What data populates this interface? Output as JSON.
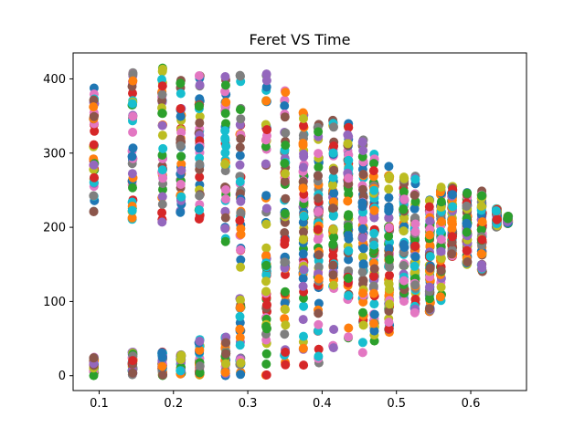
{
  "chart_data": {
    "type": "scatter",
    "title": "Feret VS Time",
    "xlabel": "",
    "ylabel": "",
    "xlim": [
      0.065,
      0.675
    ],
    "ylim": [
      -20,
      435
    ],
    "grid": false,
    "legend": "none",
    "x_ticks": [
      0.1,
      0.2,
      0.3,
      0.4,
      0.5,
      0.6
    ],
    "x_tick_labels": [
      "0.1",
      "0.2",
      "0.3",
      "0.4",
      "0.5",
      "0.6"
    ],
    "y_ticks": [
      0,
      100,
      200,
      300,
      400
    ],
    "y_tick_labels": [
      "0",
      "100",
      "200",
      "300",
      "400"
    ],
    "x": [
      0.093,
      0.145,
      0.185,
      0.21,
      0.235,
      0.27,
      0.29,
      0.325,
      0.35,
      0.375,
      0.395,
      0.415,
      0.435,
      0.455,
      0.47,
      0.49,
      0.51,
      0.525,
      0.545,
      0.56,
      0.575,
      0.595,
      0.615,
      0.635,
      0.65
    ],
    "bands": [
      {
        "low": 0,
        "high": 25,
        "top_low": 220,
        "top_high": 405
      },
      {
        "low": 0,
        "high": 32,
        "top_low": 210,
        "top_high": 410
      },
      {
        "low": 0,
        "high": 33,
        "top_low": 205,
        "top_high": 415
      },
      {
        "low": 0,
        "high": 30,
        "top_low": 220,
        "top_high": 410
      },
      {
        "low": 0,
        "high": 52,
        "top_low": 200,
        "top_high": 410
      },
      {
        "low": 0,
        "high": 55,
        "top_low": 180,
        "top_high": 410
      },
      {
        "low": 0,
        "high": 110,
        "top_low": 140,
        "top_high": 405
      },
      {
        "low": 0,
        "high": 170,
        "top_low": 110,
        "top_high": 408
      },
      {
        "low": 5,
        "high": 220,
        "top_low": 140,
        "top_high": 400
      },
      {
        "low": 10,
        "high": 260,
        "top_low": 120,
        "top_high": 380
      },
      {
        "low": 10,
        "high": 290,
        "top_low": 120,
        "top_high": 350
      },
      {
        "low": 15,
        "high": 310,
        "top_low": 120,
        "top_high": 345
      },
      {
        "low": 25,
        "high": 320,
        "top_low": 100,
        "top_high": 345
      },
      {
        "low": 30,
        "high": 300,
        "top_low": 80,
        "top_high": 320
      },
      {
        "low": 30,
        "high": 290,
        "top_low": 60,
        "top_high": 305
      },
      {
        "low": 55,
        "high": 270,
        "top_low": 55,
        "top_high": 295
      },
      {
        "low": 100,
        "high": 240,
        "top_low": 100,
        "top_high": 270
      },
      {
        "low": 80,
        "high": 220,
        "top_low": 80,
        "top_high": 270
      },
      {
        "low": 80,
        "high": 230,
        "top_low": 80,
        "top_high": 245
      },
      {
        "low": 100,
        "high": 250,
        "top_low": 140,
        "top_high": 255
      },
      {
        "low": 160,
        "high": 255,
        "top_low": 160,
        "top_high": 255
      },
      {
        "low": 150,
        "high": 250,
        "top_low": 150,
        "top_high": 250
      },
      {
        "low": 140,
        "high": 250,
        "top_low": 140,
        "top_high": 250
      },
      {
        "low": 200,
        "high": 225,
        "top_low": 200,
        "top_high": 225
      },
      {
        "low": 205,
        "high": 215,
        "top_low": 205,
        "top_high": 215
      }
    ],
    "colors": [
      "#1f77b4",
      "#ff7f0e",
      "#2ca02c",
      "#d62728",
      "#9467bd",
      "#8c564b",
      "#e377c2",
      "#7f7f7f",
      "#bcbd22",
      "#17becf"
    ]
  }
}
